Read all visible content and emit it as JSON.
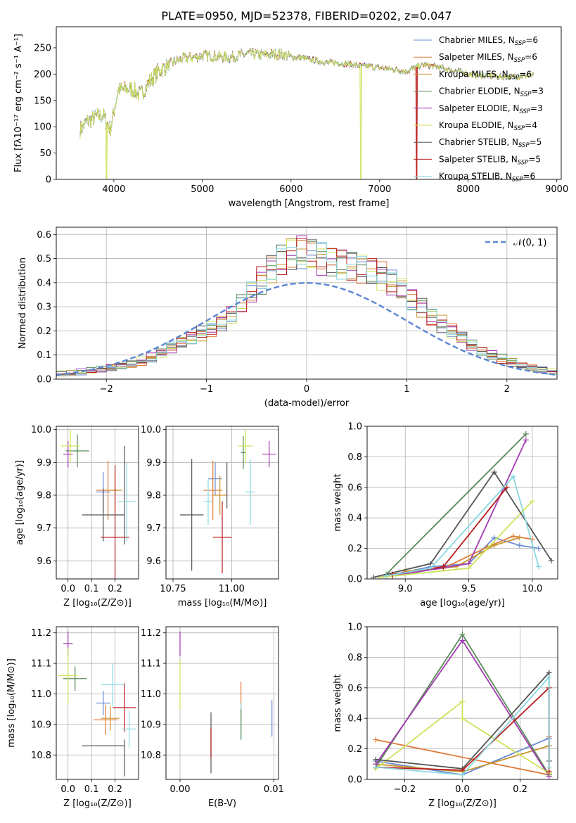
{
  "figure_title": "PLATE=0950, MJD=52378, FIBERID=0202, z=0.047",
  "series_colors": [
    "#6a8dd3",
    "#e07b39",
    "#c8952d",
    "#5a8a5a",
    "#a23ab0",
    "#cde35a",
    "#555555",
    "#b81c1c",
    "#8ad8e0"
  ],
  "chart_data": [
    {
      "id": "spectrum",
      "type": "line",
      "xlabel": "wavelength [Angstrom, rest frame]",
      "ylabel": "Flux [fλ10⁻¹⁷ erg cm⁻² s⁻¹ A⁻¹]",
      "xlim": [
        3350,
        9050
      ],
      "ylim": [
        0,
        290
      ],
      "xticks": [
        4000,
        5000,
        6000,
        7000,
        8000,
        9000
      ],
      "yticks": [
        0,
        50,
        100,
        150,
        200,
        250
      ],
      "legend_position": "upper-right",
      "legend": [
        {
          "base": "Chabrier MILES, N",
          "sub": "SSP",
          "end": "=6"
        },
        {
          "base": "Salpeter MILES, N",
          "sub": "SSP",
          "end": "=6"
        },
        {
          "base": "Kroupa MILES, N",
          "sub": "SSP",
          "end": "=6"
        },
        {
          "base": "Chabrier ELODIE, N",
          "sub": "SSP",
          "end": "=3"
        },
        {
          "base": "Salpeter ELODIE, N",
          "sub": "SSP",
          "end": "=3"
        },
        {
          "base": "Kroupa ELODIE, N",
          "sub": "SSP",
          "end": "=4"
        },
        {
          "base": "Chabrier STELIB, N",
          "sub": "SSP",
          "end": "=5"
        },
        {
          "base": "Salpeter STELIB, N",
          "sub": "SSP",
          "end": "=5"
        },
        {
          "base": "Kroupa STELIB, N",
          "sub": "SSP",
          "end": "=6"
        }
      ],
      "continuum": [
        [
          3620,
          95
        ],
        [
          3700,
          110
        ],
        [
          3800,
          118
        ],
        [
          3880,
          122
        ],
        [
          3960,
          95
        ],
        [
          4050,
          170
        ],
        [
          4200,
          172
        ],
        [
          4300,
          160
        ],
        [
          4400,
          185
        ],
        [
          4500,
          205
        ],
        [
          4600,
          215
        ],
        [
          4700,
          225
        ],
        [
          4800,
          230
        ],
        [
          4900,
          232
        ],
        [
          5000,
          235
        ],
        [
          5100,
          235
        ],
        [
          5200,
          233
        ],
        [
          5300,
          232
        ],
        [
          5400,
          235
        ],
        [
          5500,
          238
        ],
        [
          5600,
          238
        ],
        [
          5700,
          236
        ],
        [
          5800,
          238
        ],
        [
          5900,
          238
        ],
        [
          6000,
          232
        ],
        [
          6100,
          232
        ],
        [
          6200,
          228
        ],
        [
          6300,
          225
        ],
        [
          6400,
          222
        ],
        [
          6500,
          222
        ],
        [
          6600,
          220
        ],
        [
          6700,
          218
        ],
        [
          6800,
          215
        ],
        [
          6900,
          215
        ],
        [
          7000,
          212
        ],
        [
          7100,
          210
        ],
        [
          7200,
          208
        ],
        [
          7300,
          205
        ],
        [
          7400,
          212
        ],
        [
          7500,
          218
        ],
        [
          7600,
          215
        ],
        [
          7700,
          212
        ],
        [
          7800,
          208
        ],
        [
          7900,
          205
        ],
        [
          8000,
          200
        ],
        [
          8100,
          198
        ],
        [
          8200,
          197
        ],
        [
          8300,
          196
        ],
        [
          8400,
          195
        ],
        [
          8500,
          195
        ],
        [
          8600,
          196
        ],
        [
          8700,
          197
        ],
        [
          8740,
          197
        ]
      ],
      "dips": [
        {
          "series": 5,
          "x": 3920
        },
        {
          "series": 5,
          "x": 6790
        },
        {
          "series": 7,
          "x": 7420
        }
      ]
    },
    {
      "id": "residuals",
      "type": "histogram",
      "xlabel": "(data-model)/error",
      "ylabel": "Normed distribution",
      "xlim": [
        -2.5,
        2.5
      ],
      "ylim": [
        0,
        0.63
      ],
      "xticks": [
        -2,
        -1,
        0,
        1,
        2
      ],
      "yticks": [
        0.0,
        0.1,
        0.2,
        0.3,
        0.4,
        0.5,
        0.6
      ],
      "grid": true,
      "legend_position": "upper-right",
      "normal_label": "𝒩(0, 1)",
      "normal_color": "#5a86d4",
      "bin_width": 0.1,
      "base_density": [
        0.02,
        0.023,
        0.026,
        0.03,
        0.035,
        0.04,
        0.046,
        0.053,
        0.062,
        0.075,
        0.09,
        0.11,
        0.13,
        0.15,
        0.17,
        0.19,
        0.21,
        0.235,
        0.27,
        0.31,
        0.36,
        0.41,
        0.46,
        0.5,
        0.52,
        0.53,
        0.52,
        0.5,
        0.49,
        0.48,
        0.47,
        0.46,
        0.45,
        0.43,
        0.4,
        0.37,
        0.33,
        0.3,
        0.26,
        0.23,
        0.2,
        0.17,
        0.14,
        0.12,
        0.1,
        0.085,
        0.07,
        0.055,
        0.045,
        0.037,
        0.03,
        0.025
      ]
    },
    {
      "id": "age-vs-z",
      "type": "errorbar",
      "xlabel": "Z [log₁₀(Z/Z⊙)]",
      "ylabel": "age  [log₁₀(age/yr)]",
      "xlim": [
        -0.05,
        0.3
      ],
      "ylim": [
        9.545,
        10.01
      ],
      "xticks": [
        0.0,
        0.1,
        0.2
      ],
      "yticks": [
        9.6,
        9.7,
        9.8,
        9.9,
        10.0
      ],
      "points": [
        {
          "s": 0,
          "x": 0.15,
          "y": 9.81,
          "xe": 0.03,
          "ye": 0.06
        },
        {
          "s": 1,
          "x": 0.17,
          "y": 9.815,
          "xe": 0.05,
          "ye": 0.09
        },
        {
          "s": 2,
          "x": 0.2,
          "y": 9.815,
          "xe": 0.03,
          "ye": 0.06
        },
        {
          "s": 3,
          "x": 0.04,
          "y": 9.935,
          "xe": 0.05,
          "ye": 0.05
        },
        {
          "s": 4,
          "x": 0.0,
          "y": 9.925,
          "xe": 0.02,
          "ye": 0.04
        },
        {
          "s": 5,
          "x": 0.01,
          "y": 9.95,
          "xe": 0.04,
          "ye": 0.05
        },
        {
          "s": 6,
          "x": 0.15,
          "y": 9.74,
          "xe": 0.09,
          "ye": 0.08
        },
        {
          "s": 6,
          "x": 0.24,
          "y": 9.8,
          "xe": 0.0,
          "ye": 0.15
        },
        {
          "s": 7,
          "x": 0.2,
          "y": 9.672,
          "xe": 0.06,
          "ye": 0.22
        },
        {
          "s": 8,
          "x": 0.25,
          "y": 9.78,
          "xe": 0.04,
          "ye": 0.12
        }
      ]
    },
    {
      "id": "age-vs-mass",
      "type": "errorbar",
      "xlabel": "mass [log₁₀(M/M⊙)]",
      "ylabel": "",
      "xlim": [
        10.72,
        11.2
      ],
      "ylim": [
        9.545,
        10.01
      ],
      "xticks": [
        10.75,
        11.0
      ],
      "yticks": [
        9.6,
        9.7,
        9.8,
        9.9,
        10.0
      ],
      "points": [
        {
          "s": 0,
          "x": 10.93,
          "y": 9.85,
          "xe": 0.03,
          "ye": 0.05
        },
        {
          "s": 1,
          "x": 10.92,
          "y": 9.815,
          "xe": 0.04,
          "ye": 0.09
        },
        {
          "s": 2,
          "x": 10.95,
          "y": 9.8,
          "xe": 0.03,
          "ye": 0.06
        },
        {
          "s": 3,
          "x": 11.05,
          "y": 9.93,
          "xe": 0.01,
          "ye": 0.05
        },
        {
          "s": 4,
          "x": 11.16,
          "y": 9.925,
          "xe": 0.03,
          "ye": 0.04
        },
        {
          "s": 5,
          "x": 11.06,
          "y": 9.95,
          "xe": 0.03,
          "ye": 0.05
        },
        {
          "s": 6,
          "x": 10.83,
          "y": 9.74,
          "xe": 0.05,
          "ye": 0.17
        },
        {
          "s": 6,
          "x": 10.98,
          "y": 9.83,
          "xe": 0.0,
          "ye": 0.07
        },
        {
          "s": 7,
          "x": 10.96,
          "y": 9.672,
          "xe": 0.04,
          "ye": 0.11
        },
        {
          "s": 8,
          "x": 10.9,
          "y": 9.78,
          "xe": 0.02,
          "ye": 0.07
        },
        {
          "s": 8,
          "x": 11.08,
          "y": 9.81,
          "xe": 0.02,
          "ye": 0.1
        }
      ]
    },
    {
      "id": "weight-vs-age",
      "type": "line",
      "xlabel": "age  [log₁₀(age/yr)]",
      "ylabel": "mass weight",
      "xlim": [
        8.7,
        10.2
      ],
      "ylim": [
        0,
        1.0
      ],
      "xticks": [
        9.0,
        9.5,
        10.0
      ],
      "yticks": [
        0.0,
        0.2,
        0.4,
        0.6,
        0.8,
        1.0
      ],
      "grid": true,
      "series": [
        {
          "s": 0,
          "points": [
            [
              8.8,
              0.01
            ],
            [
              9.2,
              0.08
            ],
            [
              9.5,
              0.1
            ],
            [
              9.7,
              0.27
            ],
            [
              9.9,
              0.22
            ],
            [
              10.05,
              0.2
            ]
          ]
        },
        {
          "s": 1,
          "points": [
            [
              8.9,
              0.03
            ],
            [
              9.3,
              0.07
            ],
            [
              9.65,
              0.21
            ],
            [
              9.85,
              0.28
            ],
            [
              10.0,
              0.26
            ]
          ]
        },
        {
          "s": 2,
          "points": [
            [
              9.0,
              0.05
            ],
            [
              9.4,
              0.08
            ],
            [
              9.7,
              0.22
            ],
            [
              9.9,
              0.27
            ]
          ]
        },
        {
          "s": 3,
          "points": [
            [
              8.85,
              0.03
            ],
            [
              9.95,
              0.95
            ]
          ]
        },
        {
          "s": 4,
          "points": [
            [
              8.9,
              0.02
            ],
            [
              9.5,
              0.1
            ],
            [
              9.95,
              0.91
            ]
          ]
        },
        {
          "s": 5,
          "points": [
            [
              8.8,
              0.01
            ],
            [
              9.5,
              0.07
            ],
            [
              10.0,
              0.51
            ]
          ]
        },
        {
          "s": 6,
          "points": [
            [
              8.75,
              0.01
            ],
            [
              9.2,
              0.1
            ],
            [
              9.7,
              0.7
            ],
            [
              10.15,
              0.12
            ]
          ]
        },
        {
          "s": 7,
          "points": [
            [
              8.9,
              0.03
            ],
            [
              9.3,
              0.08
            ],
            [
              9.8,
              0.6
            ]
          ]
        },
        {
          "s": 8,
          "points": [
            [
              8.85,
              0.02
            ],
            [
              9.2,
              0.07
            ],
            [
              9.85,
              0.67
            ],
            [
              10.05,
              0.08
            ]
          ]
        }
      ]
    },
    {
      "id": "mass-vs-z",
      "type": "errorbar",
      "xlabel": "Z [log₁₀(Z/Z⊙)]",
      "ylabel": "mass [log₁₀(M/M⊙)]",
      "xlim": [
        -0.05,
        0.3
      ],
      "ylim": [
        10.72,
        11.22
      ],
      "xticks": [
        0.0,
        0.1,
        0.2
      ],
      "yticks": [
        10.8,
        10.9,
        11.0,
        11.1,
        11.2
      ],
      "points": [
        {
          "s": 0,
          "x": 0.15,
          "y": 10.97,
          "xe": 0.03,
          "ye": 0.04
        },
        {
          "s": 1,
          "x": 0.16,
          "y": 10.915,
          "xe": 0.05,
          "ye": 0.05
        },
        {
          "s": 2,
          "x": 0.18,
          "y": 10.92,
          "xe": 0.04,
          "ye": 0.04
        },
        {
          "s": 3,
          "x": 0.03,
          "y": 11.05,
          "xe": 0.05,
          "ye": 0.04
        },
        {
          "s": 4,
          "x": 0.0,
          "y": 11.165,
          "xe": 0.02,
          "ye": 0.04
        },
        {
          "s": 5,
          "x": 0.0,
          "y": 11.06,
          "xe": 0.04,
          "ye": 0.09
        },
        {
          "s": 6,
          "x": 0.15,
          "y": 10.83,
          "xe": 0.09,
          "ye": 0.0
        },
        {
          "s": 6,
          "x": 0.24,
          "y": 10.79,
          "xe": 0.0,
          "ye": 0.06
        },
        {
          "s": 7,
          "x": 0.24,
          "y": 10.955,
          "xe": 0.05,
          "ye": 0.08
        },
        {
          "s": 8,
          "x": 0.26,
          "y": 10.885,
          "xe": 0.03,
          "ye": 0.06
        },
        {
          "s": 8,
          "x": 0.19,
          "y": 11.03,
          "xe": 0.05,
          "ye": 0.07
        }
      ]
    },
    {
      "id": "mass-vs-ebv",
      "type": "errorbar",
      "xlabel": "E(B-V)",
      "ylabel": "",
      "xlim": [
        -0.0015,
        0.0105
      ],
      "ylim": [
        10.72,
        11.22
      ],
      "xticks": [
        0.0,
        0.01
      ],
      "yticks": [
        10.8,
        10.9,
        11.0,
        11.1,
        11.2
      ],
      "points": [
        {
          "s": 4,
          "x": 0.0,
          "y": 11.165,
          "xe": 0.0,
          "ye": 0.04
        },
        {
          "s": 5,
          "x": 0.0,
          "y": 11.03,
          "xe": 0.0,
          "ye": 0.08
        },
        {
          "s": 6,
          "x": 0.0033,
          "y": 10.84,
          "xe": 0.0,
          "ye": 0.1
        },
        {
          "s": 7,
          "x": 0.0033,
          "y": 10.84,
          "xe": 0.0,
          "ye": 0.05
        },
        {
          "s": 1,
          "x": 0.0065,
          "y": 10.98,
          "xe": 0.0,
          "ye": 0.06
        },
        {
          "s": 8,
          "x": 0.0065,
          "y": 10.91,
          "xe": 0.0,
          "ye": 0.06
        },
        {
          "s": 3,
          "x": 0.0065,
          "y": 10.9,
          "xe": 0.0,
          "ye": 0.05
        },
        {
          "s": 0,
          "x": 0.0098,
          "y": 10.92,
          "xe": 0.0,
          "ye": 0.06
        }
      ]
    },
    {
      "id": "weight-vs-z",
      "type": "line",
      "xlabel": "Z [log₁₀(Z/Z⊙)]",
      "ylabel": "mass weight",
      "xlim": [
        -0.33,
        0.33
      ],
      "ylim": [
        0,
        1.0
      ],
      "xticks": [
        -0.2,
        0.0,
        0.2
      ],
      "yticks": [
        0.0,
        0.2,
        0.4,
        0.6,
        0.8,
        1.0
      ],
      "grid": true,
      "series": [
        {
          "s": 0,
          "points": [
            [
              -0.3,
              0.12
            ],
            [
              0.0,
              0.03
            ],
            [
              0.3,
              0.27
            ],
            [
              0.3,
              0.22
            ]
          ]
        },
        {
          "s": 1,
          "points": [
            [
              -0.3,
              0.26
            ],
            [
              0.3,
              0.03
            ],
            [
              0.3,
              0.28
            ]
          ]
        },
        {
          "s": 2,
          "points": [
            [
              -0.3,
              0.1
            ],
            [
              0.0,
              0.05
            ],
            [
              0.3,
              0.22
            ]
          ]
        },
        {
          "s": 3,
          "points": [
            [
              -0.3,
              0.08
            ],
            [
              0.0,
              0.95
            ],
            [
              0.3,
              0.03
            ]
          ]
        },
        {
          "s": 4,
          "points": [
            [
              -0.3,
              0.1
            ],
            [
              0.0,
              0.91
            ],
            [
              0.3,
              0.02
            ]
          ]
        },
        {
          "s": 5,
          "points": [
            [
              -0.3,
              0.07
            ],
            [
              0.0,
              0.51
            ],
            [
              0.0,
              0.4
            ],
            [
              0.3,
              0.04
            ]
          ]
        },
        {
          "s": 6,
          "points": [
            [
              -0.3,
              0.13
            ],
            [
              0.0,
              0.07
            ],
            [
              0.3,
              0.7
            ],
            [
              0.3,
              0.12
            ]
          ]
        },
        {
          "s": 7,
          "points": [
            [
              -0.3,
              0.08
            ],
            [
              0.0,
              0.06
            ],
            [
              0.3,
              0.6
            ],
            [
              0.3,
              0.05
            ]
          ]
        },
        {
          "s": 8,
          "points": [
            [
              -0.3,
              0.08
            ],
            [
              0.0,
              0.03
            ],
            [
              0.3,
              0.67
            ],
            [
              0.3,
              0.08
            ]
          ]
        }
      ]
    }
  ]
}
